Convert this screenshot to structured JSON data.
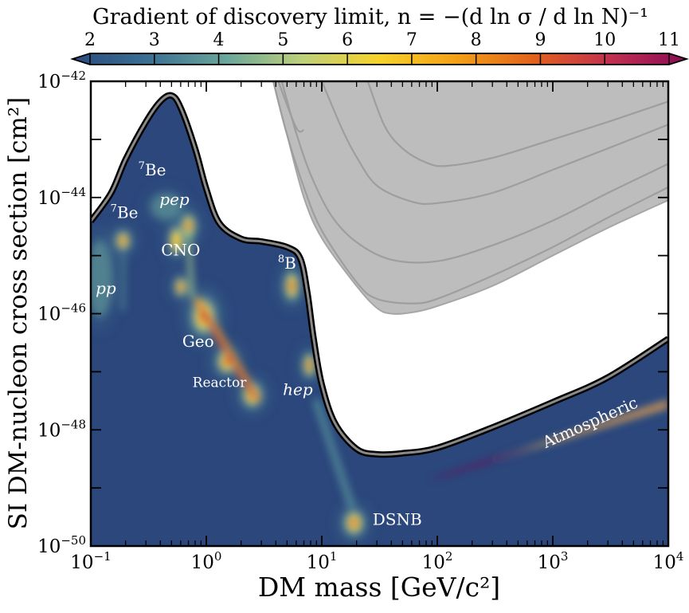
{
  "chart_data": {
    "type": "heatmap",
    "title": "Gradient of discovery limit, n = −(d ln σ / d ln N)⁻¹",
    "xlabel": "DM mass [GeV/c²]",
    "ylabel": "SI DM-nucleon cross section [cm²]",
    "x_scale": "log",
    "y_scale": "log",
    "xlim": [
      0.1,
      10000
    ],
    "ylim": [
      1e-50,
      1e-42
    ],
    "x_ticks": [
      {
        "value": 0.1,
        "base": "10",
        "exp": "−1"
      },
      {
        "value": 1,
        "base": "10",
        "exp": "0"
      },
      {
        "value": 10,
        "base": "10",
        "exp": "1"
      },
      {
        "value": 100,
        "base": "10",
        "exp": "2"
      },
      {
        "value": 1000,
        "base": "10",
        "exp": "3"
      },
      {
        "value": 10000,
        "base": "10",
        "exp": "4"
      }
    ],
    "y_ticks": [
      {
        "value": 1e-42,
        "base": "10",
        "exp": "−42"
      },
      {
        "value": 1e-44,
        "base": "10",
        "exp": "−44"
      },
      {
        "value": 1e-46,
        "base": "10",
        "exp": "−46"
      },
      {
        "value": 1e-48,
        "base": "10",
        "exp": "−48"
      },
      {
        "value": 1e-50,
        "base": "10",
        "exp": "−50"
      }
    ],
    "colorbar": {
      "min": 2,
      "max": 11,
      "ticks": [
        "2",
        "3",
        "4",
        "5",
        "6",
        "7",
        "8",
        "9",
        "10",
        "11"
      ],
      "colors": [
        "#2b4a7e",
        "#3a6f92",
        "#6aa69a",
        "#bed07a",
        "#f7d22a",
        "#f3a016",
        "#e2621c",
        "#c03050",
        "#8b0a55"
      ]
    },
    "neutrino_fog_boundary": [
      [
        0.1,
        3.9e-45
      ],
      [
        0.15,
        1.2e-44
      ],
      [
        0.2,
        4.5e-44
      ],
      [
        0.3,
        2e-43
      ],
      [
        0.4,
        4.5e-43
      ],
      [
        0.5,
        5.7e-43
      ],
      [
        0.6,
        3.5e-43
      ],
      [
        0.8,
        7e-44
      ],
      [
        1.0,
        1.4e-44
      ],
      [
        1.3,
        3.6e-45
      ],
      [
        2.0,
        1.95e-45
      ],
      [
        3.0,
        1.75e-45
      ],
      [
        5.0,
        1.4e-45
      ],
      [
        6.5,
        9e-46
      ],
      [
        7.5,
        2.3e-46
      ],
      [
        8.5,
        3.7e-47
      ],
      [
        10,
        6e-48
      ],
      [
        13,
        1.3e-48
      ],
      [
        20,
        4.7e-49
      ],
      [
        30,
        3.8e-49
      ],
      [
        50,
        3.95e-49
      ],
      [
        100,
        4.9e-49
      ],
      [
        300,
        1.1e-48
      ],
      [
        1000,
        3e-48
      ],
      [
        3000,
        8e-48
      ],
      [
        10000,
        3.7e-47
      ]
    ],
    "excluded_region_boundary": [
      [
        3.8,
        1e-42
      ],
      [
        5,
        1.2e-43
      ],
      [
        7,
        1e-44
      ],
      [
        10,
        2e-45
      ],
      [
        20,
        3e-46
      ],
      [
        30,
        1.25e-46
      ],
      [
        40,
        1e-46
      ],
      [
        60,
        1.05e-46
      ],
      [
        100,
        1.35e-46
      ],
      [
        300,
        3e-46
      ],
      [
        1000,
        1e-45
      ],
      [
        3000,
        3e-45
      ],
      [
        10000,
        9e-45
      ]
    ],
    "exclusion_curves": [
      [
        [
          3.8,
          1e-42
        ],
        [
          5,
          1.2e-43
        ],
        [
          7,
          1.5e-44
        ],
        [
          10,
          2.7e-45
        ],
        [
          20,
          3.5e-46
        ],
        [
          30,
          1.8e-46
        ],
        [
          60,
          1.5e-46
        ],
        [
          100,
          1.8e-46
        ],
        [
          300,
          4.5e-46
        ],
        [
          1000,
          1.4e-45
        ],
        [
          3000,
          4.5e-45
        ],
        [
          10000,
          1.5e-44
        ]
      ],
      [
        [
          4.5,
          1e-42
        ],
        [
          6,
          1.3e-43
        ],
        [
          8,
          2.5e-44
        ],
        [
          12,
          5e-45
        ],
        [
          20,
          1.7e-45
        ],
        [
          40,
          8.5e-46
        ],
        [
          100,
          8e-46
        ],
        [
          300,
          1.5e-45
        ],
        [
          1000,
          4e-45
        ],
        [
          3000,
          1.2e-44
        ],
        [
          10000,
          3.8e-44
        ]
      ],
      [
        [
          10,
          1e-42
        ],
        [
          15,
          1.5e-43
        ],
        [
          20,
          5e-44
        ],
        [
          30,
          1.6e-44
        ],
        [
          60,
          8.5e-45
        ],
        [
          100,
          8e-45
        ],
        [
          300,
          1.2e-44
        ],
        [
          1000,
          3e-44
        ],
        [
          3000,
          7e-44
        ],
        [
          10000,
          1.8e-43
        ]
      ],
      [
        [
          25,
          1e-42
        ],
        [
          35,
          1.7e-43
        ],
        [
          50,
          7e-44
        ],
        [
          80,
          4e-44
        ],
        [
          120,
          3.5e-44
        ],
        [
          300,
          4.8e-44
        ],
        [
          1000,
          1e-43
        ],
        [
          3000,
          2e-43
        ],
        [
          10000,
          4.5e-43
        ]
      ],
      [
        [
          4.2,
          1e-42
        ],
        [
          6,
          1.6e-43
        ],
        [
          7,
          1.45e-43
        ]
      ]
    ],
    "hotspots": [
      {
        "x": 0.19,
        "y": 1.8e-45,
        "strength": 1.0,
        "sx": 0.03,
        "sy": 0.08
      },
      {
        "x": 0.7,
        "y": 3.2e-45,
        "strength": 1.0,
        "sx": 0.03,
        "sy": 0.1
      },
      {
        "x": 0.6,
        "y": 2.9e-46,
        "strength": 0.8,
        "sx": 0.025,
        "sy": 0.08
      },
      {
        "x": 0.55,
        "y": 1.8e-45,
        "strength": 0.5,
        "sx": 0.03,
        "sy": 0.12
      },
      {
        "x": 0.45,
        "y": 7e-45,
        "strength": 0.3,
        "sx": 0.06,
        "sy": 0.1
      },
      {
        "x": 0.95,
        "y": 9e-47,
        "strength": 1.0,
        "sx": 0.05,
        "sy": 0.15
      },
      {
        "x": 1.5,
        "y": 1.5e-47,
        "strength": 1.0,
        "sx": 0.04,
        "sy": 0.1
      },
      {
        "x": 2.5,
        "y": 4e-48,
        "strength": 1.0,
        "sx": 0.04,
        "sy": 0.1
      },
      {
        "x": 5.5,
        "y": 3e-46,
        "strength": 1.0,
        "sx": 0.03,
        "sy": 0.12
      },
      {
        "x": 7.8,
        "y": 1.3e-47,
        "strength": 0.9,
        "sx": 0.025,
        "sy": 0.1
      },
      {
        "x": 19,
        "y": 2.5e-50,
        "strength": 1.0,
        "sx": 0.04,
        "sy": 0.1
      },
      {
        "x": 0.12,
        "y": 4e-46,
        "strength": 0.2,
        "sx": 0.05,
        "sy": 0.3
      }
    ],
    "atmospheric_band": {
      "x_start": 80,
      "x_end": 10000,
      "y_start": 1.3e-49,
      "y_end": 2.8e-48,
      "peak_x": 300,
      "width_decades": 0.1
    },
    "annotations": [
      {
        "text": "Atmospheric",
        "x": 2200,
        "y": 1.1e-48,
        "rotate": -24,
        "italic": false
      },
      {
        "text": "DSNB",
        "x": 45,
        "y": 2.3e-50,
        "italic": false
      },
      {
        "text": "Geo",
        "x": 0.85,
        "y": 2.7e-47,
        "italic": false
      },
      {
        "text": "Reactor",
        "x": 1.3,
        "y": 5.5e-48,
        "italic": false
      },
      {
        "text": "CNO",
        "x": 0.6,
        "y": 1e-45,
        "italic": false
      },
      {
        "text": "pep",
        "x": 0.53,
        "y": 7.5e-45,
        "italic": true
      },
      {
        "text": "hep",
        "x": 6.2,
        "y": 4e-48,
        "italic": true
      },
      {
        "text": "pp",
        "x": 0.135,
        "y": 2.2e-46,
        "italic": true
      },
      {
        "text": "Be",
        "sup": "7",
        "x": 0.34,
        "y": 2.4e-44,
        "italic": false
      },
      {
        "text": "Be",
        "sup": "7",
        "x": 0.195,
        "y": 4.4e-45,
        "italic": false
      },
      {
        "text": "B",
        "sup": "8",
        "x": 5.0,
        "y": 6e-46,
        "italic": false
      }
    ]
  }
}
